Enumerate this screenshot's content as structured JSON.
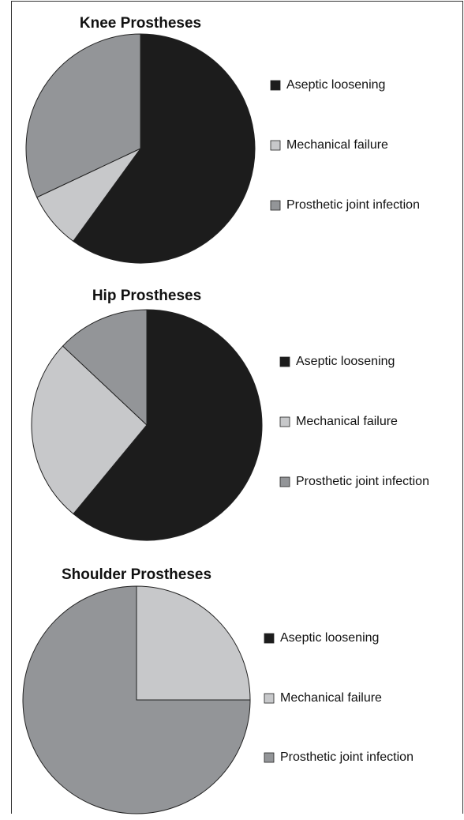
{
  "chart_data": [
    {
      "type": "pie",
      "title": "Knee Prostheses",
      "categories": [
        "Aseptic loosening",
        "Mechanical failure",
        "Prosthetic joint infection"
      ],
      "values": [
        60,
        8,
        32
      ],
      "colors": [
        "#1c1c1c",
        "#c7c8ca",
        "#939598"
      ]
    },
    {
      "type": "pie",
      "title": "Hip Prostheses",
      "categories": [
        "Aseptic loosening",
        "Mechanical failure",
        "Prosthetic joint infection"
      ],
      "values": [
        61,
        26,
        13
      ],
      "colors": [
        "#1c1c1c",
        "#c7c8ca",
        "#939598"
      ]
    },
    {
      "type": "pie",
      "title": "Shoulder Prostheses",
      "categories": [
        "Aseptic loosening",
        "Mechanical failure",
        "Prosthetic joint infection"
      ],
      "values": [
        0,
        25,
        75
      ],
      "colors": [
        "#1c1c1c",
        "#c7c8ca",
        "#939598"
      ]
    }
  ]
}
